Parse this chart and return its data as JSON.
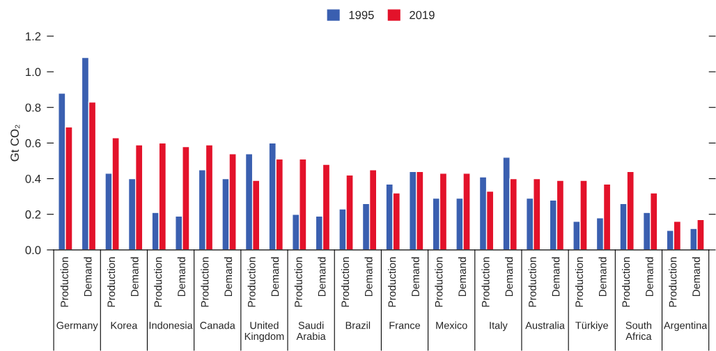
{
  "chart_data": {
    "type": "bar",
    "ylabel": "Gt CO₂",
    "categories": [
      "Production",
      "Demand",
      "Production",
      "Demand",
      "Production",
      "Demand",
      "Production",
      "Demand",
      "Production",
      "Demand",
      "Production",
      "Demand",
      "Production",
      "Demand",
      "Production",
      "Demand",
      "Production",
      "Demand",
      "Production",
      "Demand",
      "Production",
      "Demand",
      "Production",
      "Demand",
      "Production",
      "Demand",
      "Production",
      "Demand"
    ],
    "series": [
      {
        "name": "1995",
        "color": "#3a5fb0",
        "values": [
          0.88,
          1.08,
          0.43,
          0.4,
          0.21,
          0.19,
          0.45,
          0.4,
          0.54,
          0.6,
          0.2,
          0.19,
          0.23,
          0.26,
          0.37,
          0.44,
          0.29,
          0.29,
          0.41,
          0.52,
          0.29,
          0.28,
          0.16,
          0.18,
          0.26,
          0.21,
          0.11,
          0.12
        ]
      },
      {
        "name": "2019",
        "color": "#e3122a",
        "values": [
          0.69,
          0.83,
          0.63,
          0.59,
          0.6,
          0.58,
          0.59,
          0.54,
          0.39,
          0.51,
          0.51,
          0.48,
          0.42,
          0.45,
          0.32,
          0.44,
          0.43,
          0.43,
          0.33,
          0.4,
          0.4,
          0.39,
          0.39,
          0.37,
          0.44,
          0.32,
          0.16,
          0.17
        ]
      }
    ],
    "annotations": [
      "Germany",
      "Korea",
      "Indonesia",
      "Canada",
      "United\nKingdom",
      "Saudi\nArabia",
      "Brazil",
      "France",
      "Mexico",
      "Italy",
      "Australia",
      "Türkiye",
      "South\nAfrica",
      "Argentina"
    ],
    "ylim": [
      0,
      1.2
    ],
    "yticks": [
      {
        "value": 0,
        "label": "0.0"
      },
      0.2,
      0.4,
      0.6,
      0.8,
      {
        "value": 1,
        "label": "1.0"
      },
      1.2
    ],
    "grid": false,
    "legend": "top"
  }
}
